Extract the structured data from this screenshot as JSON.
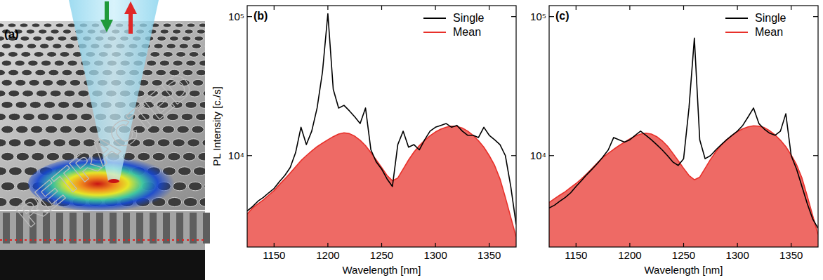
{
  "panel_a": {
    "label": "(a)"
  },
  "watermark": "RETRACTED",
  "chart_data": [
    {
      "type": "line",
      "title": "(b)",
      "x_label": "Wavelength [nm]",
      "y_label": "PL Intensity [c./s]",
      "log": "y",
      "grid": false,
      "legend": "upper right",
      "xlim": [
        1125,
        1375
      ],
      "xticks": [
        1150,
        1200,
        1250,
        1300,
        1350
      ],
      "ylim": [
        2200,
        120000
      ],
      "yticks": [
        {
          "value": 10000,
          "label": "10⁴"
        },
        {
          "value": 100000,
          "label": "10⁵"
        }
      ],
      "x": [
        1125,
        1130,
        1135,
        1140,
        1145,
        1150,
        1155,
        1160,
        1165,
        1170,
        1175,
        1180,
        1185,
        1190,
        1195,
        1200,
        1205,
        1210,
        1215,
        1220,
        1225,
        1230,
        1235,
        1240,
        1245,
        1250,
        1255,
        1260,
        1265,
        1270,
        1275,
        1280,
        1285,
        1290,
        1295,
        1300,
        1305,
        1310,
        1315,
        1320,
        1325,
        1330,
        1335,
        1340,
        1345,
        1350,
        1355,
        1360,
        1365,
        1370,
        1375
      ],
      "series": [
        {
          "name": "Single",
          "color": "#000000",
          "type": "line",
          "values": [
            4000,
            4300,
            4700,
            5000,
            5400,
            5800,
            6500,
            7200,
            8200,
            10500,
            16000,
            12000,
            15000,
            22000,
            40000,
            105000,
            30000,
            22000,
            23000,
            21000,
            19000,
            17000,
            22000,
            11000,
            9000,
            8000,
            6800,
            6000,
            12000,
            15000,
            11500,
            12000,
            11000,
            13000,
            15000,
            16000,
            16500,
            17000,
            16000,
            16500,
            15000,
            14000,
            14000,
            13500,
            16000,
            14000,
            13000,
            12000,
            10000,
            6000,
            3200
          ]
        },
        {
          "name": "Mean",
          "color": "#e8302a",
          "type": "area",
          "values": [
            3800,
            4200,
            4500,
            4800,
            5200,
            5600,
            6200,
            6800,
            7500,
            8300,
            9200,
            10000,
            10800,
            11600,
            12300,
            13000,
            13700,
            14300,
            14600,
            14400,
            13800,
            12900,
            11800,
            10500,
            9300,
            8200,
            7200,
            6600,
            6900,
            8000,
            9300,
            10600,
            11800,
            12900,
            13900,
            14800,
            15500,
            16000,
            16300,
            16200,
            15800,
            15000,
            14000,
            12800,
            11500,
            10000,
            8500,
            6800,
            5000,
            3600,
            2600
          ]
        }
      ]
    },
    {
      "type": "line",
      "title": "(c)",
      "x_label": "Wavelength [nm]",
      "log": "y",
      "grid": false,
      "legend": "upper right",
      "xlim": [
        1125,
        1375
      ],
      "xticks": [
        1150,
        1200,
        1250,
        1300,
        1350
      ],
      "ylim": [
        2200,
        120000
      ],
      "yticks": [
        {
          "value": 10000,
          "label": "10⁴"
        },
        {
          "value": 100000,
          "label": "10⁵"
        }
      ],
      "x": [
        1125,
        1130,
        1135,
        1140,
        1145,
        1150,
        1155,
        1160,
        1165,
        1170,
        1175,
        1180,
        1185,
        1190,
        1195,
        1200,
        1205,
        1210,
        1215,
        1220,
        1225,
        1230,
        1235,
        1240,
        1245,
        1250,
        1255,
        1260,
        1265,
        1270,
        1275,
        1280,
        1285,
        1290,
        1295,
        1300,
        1305,
        1310,
        1315,
        1320,
        1325,
        1330,
        1335,
        1340,
        1345,
        1350,
        1355,
        1360,
        1365,
        1370,
        1375
      ],
      "series": [
        {
          "name": "Single",
          "color": "#000000",
          "type": "line",
          "values": [
            4200,
            4400,
            4700,
            5000,
            5400,
            6000,
            6600,
            7300,
            8000,
            8800,
            9800,
            11000,
            13500,
            13000,
            12500,
            13000,
            14000,
            15000,
            14000,
            13000,
            12000,
            11000,
            10000,
            9000,
            8500,
            9500,
            22000,
            70000,
            13000,
            9500,
            10000,
            11000,
            12000,
            13000,
            14000,
            15000,
            16500,
            19000,
            22000,
            17000,
            15500,
            14500,
            14000,
            15000,
            20000,
            10000,
            8000,
            6000,
            4500,
            3500,
            3000
          ]
        },
        {
          "name": "Mean",
          "color": "#e8302a",
          "type": "area",
          "values": [
            4600,
            4900,
            5200,
            5500,
            5900,
            6300,
            6800,
            7400,
            8100,
            8900,
            9700,
            10400,
            11100,
            11800,
            12500,
            13200,
            13800,
            14300,
            14500,
            14300,
            13700,
            12800,
            11700,
            10400,
            9200,
            8100,
            7200,
            6700,
            7000,
            8100,
            9400,
            10700,
            11900,
            13000,
            14000,
            14900,
            15600,
            16100,
            16400,
            16300,
            15900,
            15100,
            14100,
            12900,
            11600,
            10100,
            8600,
            6900,
            5100,
            3700,
            2700
          ]
        }
      ]
    }
  ]
}
